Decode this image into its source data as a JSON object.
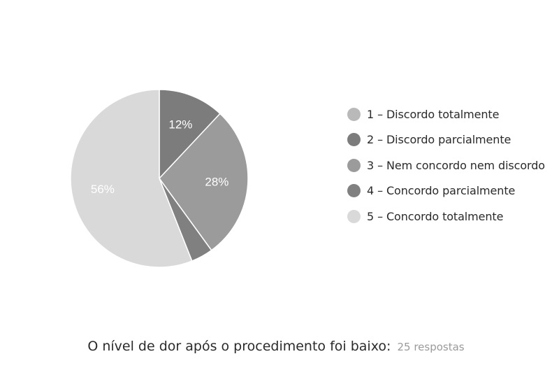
{
  "chart_data": {
    "type": "pie",
    "title": "O nível de dor após o procedimento foi baixo:",
    "subtitle": "25 respostas",
    "categories": [
      "1 – Discordo totalmente",
      "2 – Discordo parcialmente",
      "3 – Nem concordo nem discordo",
      "4 – Concordo parcialmente",
      "5 – Concordo totalmente"
    ],
    "values": [
      0,
      12,
      28,
      4,
      56
    ],
    "data_labels": [
      "",
      "12%",
      "28%",
      "",
      "56%"
    ],
    "colors": [
      "#b9b9b9",
      "#7c7c7c",
      "#9b9b9b",
      "#808080",
      "#d9d9d9"
    ],
    "legend_position": "right",
    "start_angle": "12 o'clock, clockwise"
  }
}
